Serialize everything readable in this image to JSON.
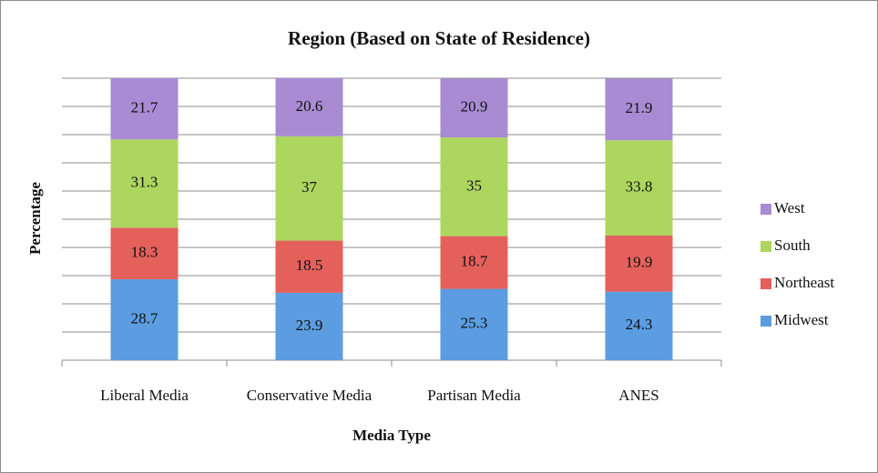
{
  "chart_data": {
    "type": "stacked-bar",
    "title": "Region (Based on State of Residence)",
    "x_label": "Media Type",
    "y_label": "Percentage",
    "categories": [
      "Liberal Media",
      "Conservative Media",
      "Partisan Media",
      "ANES"
    ],
    "series": [
      {
        "name": "Midwest",
        "color": "#5b9de0",
        "values": [
          28.7,
          23.9,
          25.3,
          24.3
        ]
      },
      {
        "name": "Northeast",
        "color": "#e4605b",
        "values": [
          18.3,
          18.5,
          18.7,
          19.9
        ]
      },
      {
        "name": "South",
        "color": "#add65f",
        "values": [
          31.3,
          37,
          35,
          33.8
        ]
      },
      {
        "name": "West",
        "color": "#a88bd3",
        "values": [
          21.7,
          20.6,
          20.9,
          21.9
        ]
      }
    ],
    "ylim": [
      0,
      100
    ],
    "yticks": [
      0,
      10,
      20,
      30,
      40,
      50,
      60,
      70,
      80,
      90,
      100
    ],
    "grid": true,
    "legend": "right"
  }
}
